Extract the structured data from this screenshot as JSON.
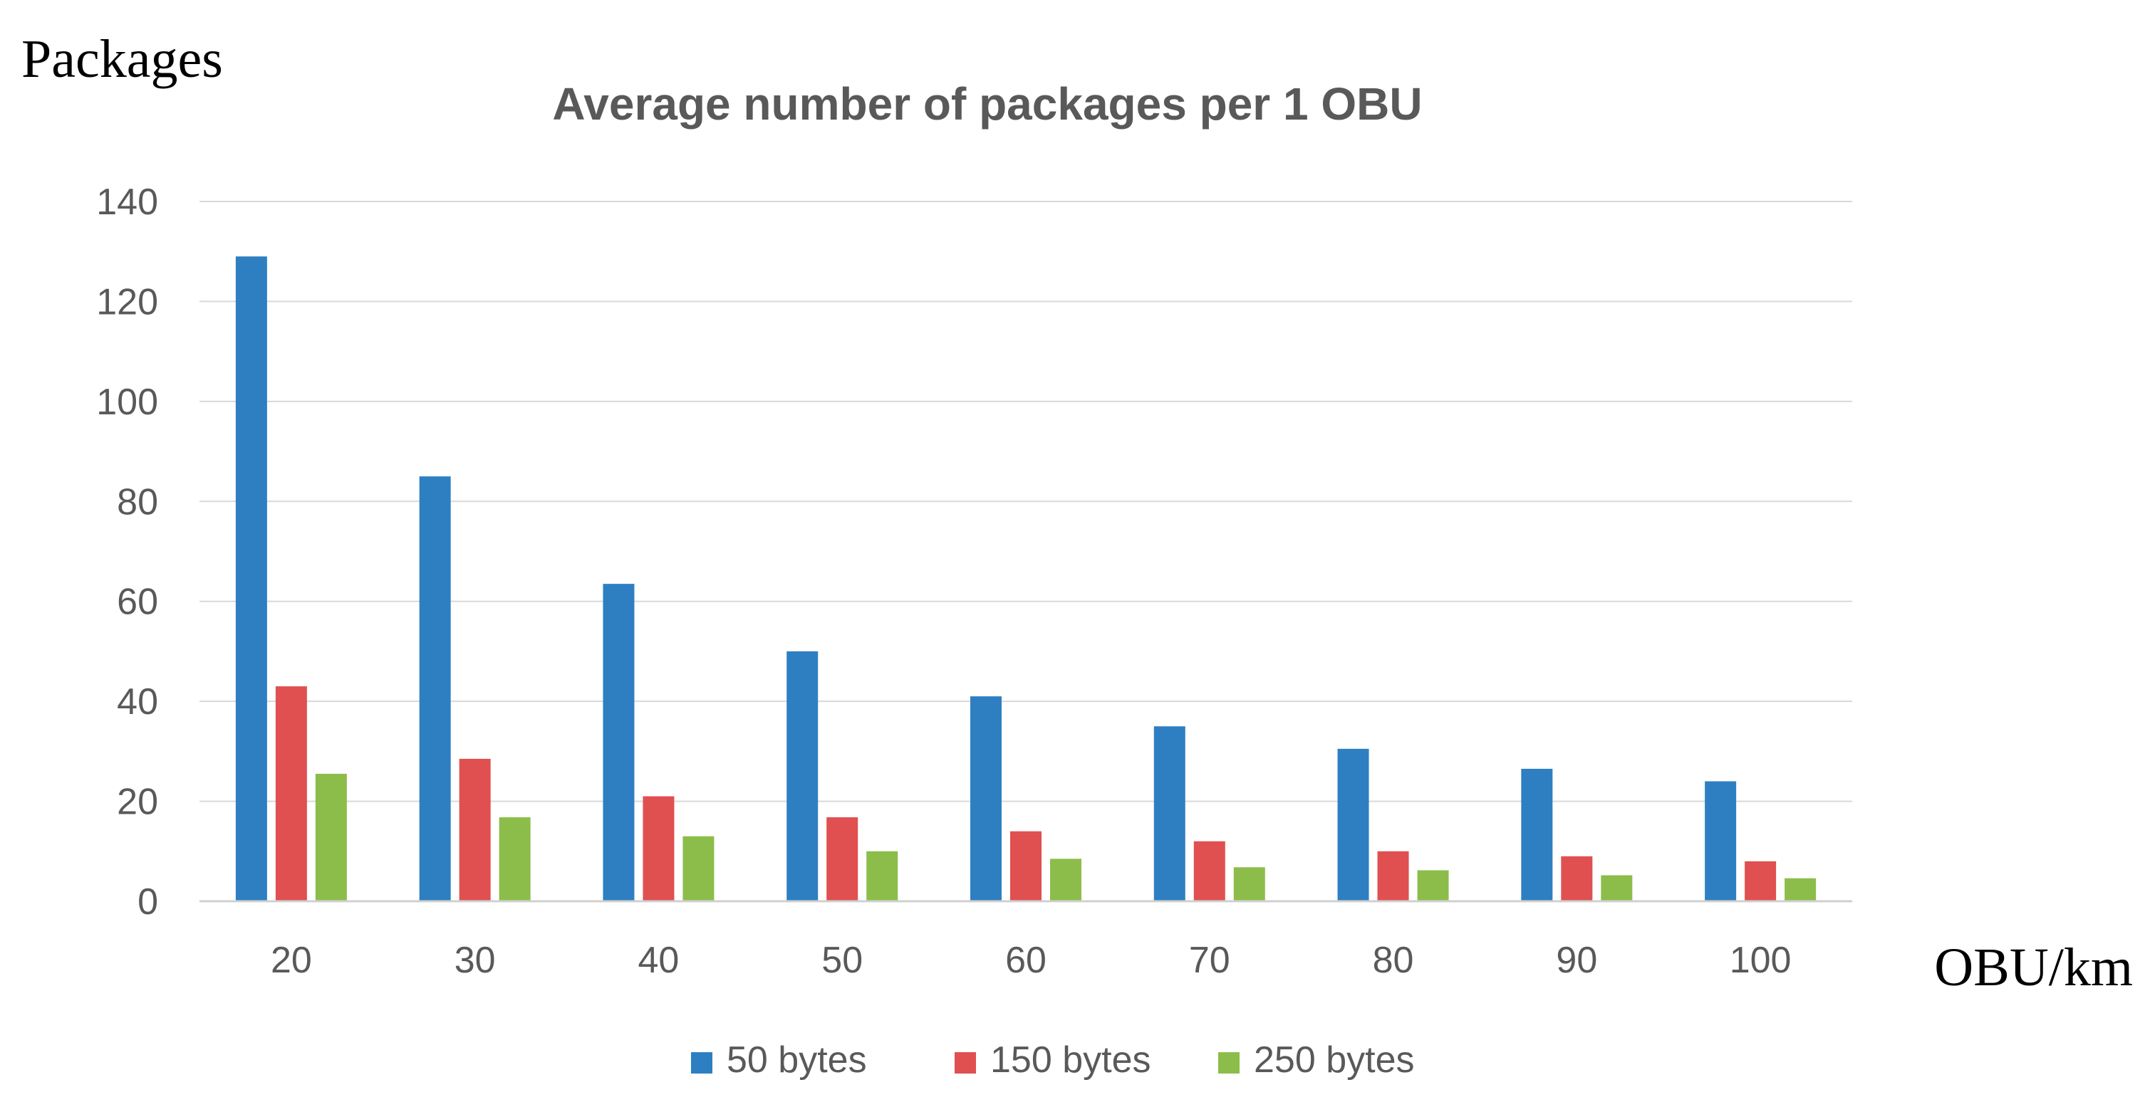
{
  "chart_data": {
    "type": "bar",
    "title": "Average number of packages per 1 OBU",
    "ylabel": "Packages",
    "xlabel": "OBU/km",
    "categories": [
      "20",
      "30",
      "40",
      "50",
      "60",
      "70",
      "80",
      "90",
      "100"
    ],
    "yticks": [
      "0",
      "20",
      "40",
      "60",
      "80",
      "100",
      "120",
      "140"
    ],
    "ylim": [
      0,
      140
    ],
    "grid": true,
    "legend_position": "bottom",
    "series": [
      {
        "name": "50 bytes",
        "color": "#2e7fc2",
        "values": [
          129,
          85,
          63.5,
          50,
          41,
          35,
          30.5,
          26.5,
          24
        ]
      },
      {
        "name": "150 bytes",
        "color": "#e05050",
        "values": [
          43,
          28.5,
          21,
          16.8,
          14,
          12,
          10,
          9,
          8
        ]
      },
      {
        "name": "250 bytes",
        "color": "#8cbd4a",
        "values": [
          25.5,
          16.8,
          13,
          10,
          8.5,
          6.8,
          6.2,
          5.2,
          4.6
        ]
      }
    ]
  }
}
